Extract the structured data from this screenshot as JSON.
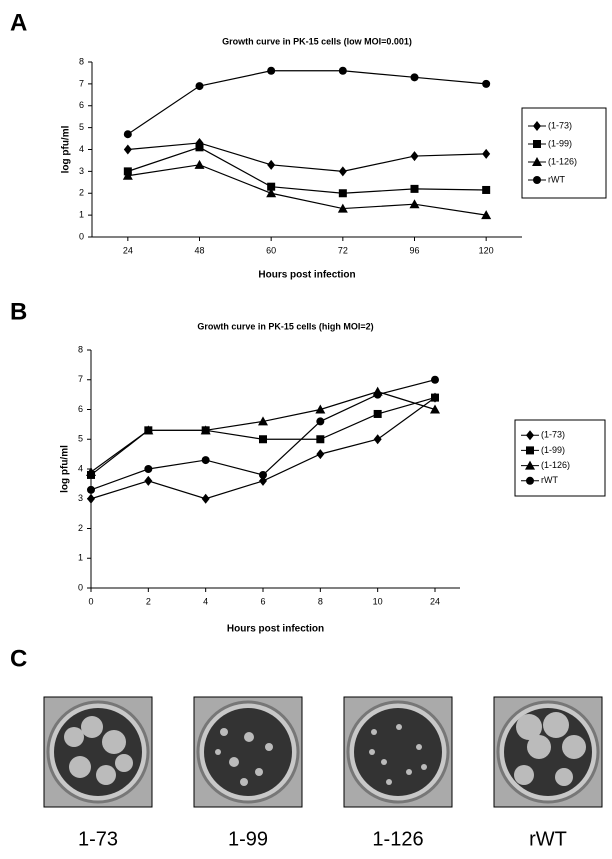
{
  "chart_data": [
    {
      "type": "line",
      "panel": "A",
      "title": "Growth curve in PK-15 cells (low MOI=0.001)",
      "x_label": "Hours post infection",
      "y_label": "log pfu/ml",
      "categories": [
        "24",
        "48",
        "60",
        "72",
        "96",
        "120"
      ],
      "ylim": [
        0,
        8
      ],
      "yticks": [
        0,
        1,
        2,
        3,
        4,
        5,
        6,
        7,
        8
      ],
      "series": [
        {
          "name": "(1-73)",
          "color": "#000000",
          "marker": "diamond",
          "values": [
            4.0,
            4.3,
            3.3,
            3.0,
            3.7,
            3.8
          ]
        },
        {
          "name": "(1-99)",
          "color": "#000000",
          "marker": "square",
          "values": [
            3.0,
            4.1,
            2.3,
            2.0,
            2.2,
            2.15
          ]
        },
        {
          "name": "(1-126)",
          "color": "#000000",
          "marker": "triangle",
          "values": [
            2.8,
            3.3,
            2.0,
            1.3,
            1.5,
            1.0
          ]
        },
        {
          "name": "rWT",
          "color": "#000000",
          "marker": "circle",
          "values": [
            4.7,
            6.9,
            7.6,
            7.6,
            7.3,
            7.0
          ]
        }
      ],
      "legend": "right"
    },
    {
      "type": "line",
      "panel": "B",
      "title": "Growth curve in PK-15 cells (high MOI=2)",
      "x_label": "Hours post infection",
      "y_label": "log pfu/ml",
      "categories": [
        "0",
        "2",
        "4",
        "6",
        "8",
        "10",
        "24"
      ],
      "ylim": [
        0,
        8
      ],
      "yticks": [
        0,
        1,
        2,
        3,
        4,
        5,
        6,
        7,
        8
      ],
      "series": [
        {
          "name": "(1-73)",
          "color": "#000000",
          "marker": "diamond",
          "values": [
            3.0,
            3.6,
            3.0,
            3.6,
            4.5,
            5.0,
            6.4
          ]
        },
        {
          "name": "(1-99)",
          "color": "#000000",
          "marker": "square",
          "values": [
            3.8,
            5.3,
            5.3,
            5.0,
            5.0,
            5.85,
            6.4
          ]
        },
        {
          "name": "(1-126)",
          "color": "#000000",
          "marker": "triangle",
          "values": [
            3.9,
            5.3,
            5.3,
            5.6,
            6.0,
            6.6,
            6.0
          ]
        },
        {
          "name": "rWT",
          "color": "#000000",
          "marker": "circle",
          "values": [
            3.3,
            4.0,
            4.3,
            3.8,
            5.6,
            6.5,
            7.0
          ]
        }
      ],
      "legend": "right"
    }
  ],
  "plaques": {
    "panel": "C",
    "captions": [
      "1-73",
      "1-99",
      "1-126",
      "rWT"
    ]
  }
}
